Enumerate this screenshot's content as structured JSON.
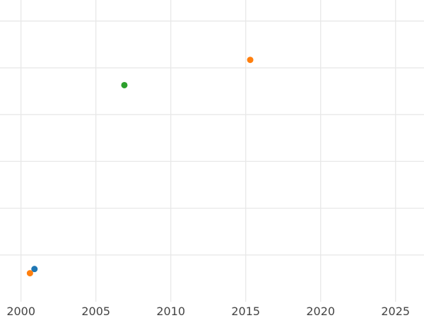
{
  "chart_data": {
    "type": "scatter",
    "title": "",
    "xlabel": "",
    "ylabel": "",
    "xlim": [
      1998.6,
      2026.9
    ],
    "ylim": [
      -1,
      5.45
    ],
    "x_ticks": [
      "2000",
      "2005",
      "2010",
      "2015",
      "2020",
      "2025"
    ],
    "y_ticks_shown": false,
    "y_gridlines": [
      0,
      1,
      2,
      3,
      4,
      5
    ],
    "grid": true,
    "legend": "none",
    "points": [
      {
        "x": 2000.9,
        "y": -0.3,
        "color": "#1f77b4"
      },
      {
        "x": 2000.6,
        "y": -0.39,
        "color": "#ff7f0e"
      },
      {
        "x": 2006.9,
        "y": 3.63,
        "color": "#2ca02c"
      },
      {
        "x": 2015.3,
        "y": 4.17,
        "color": "#ff7f0e"
      }
    ]
  }
}
